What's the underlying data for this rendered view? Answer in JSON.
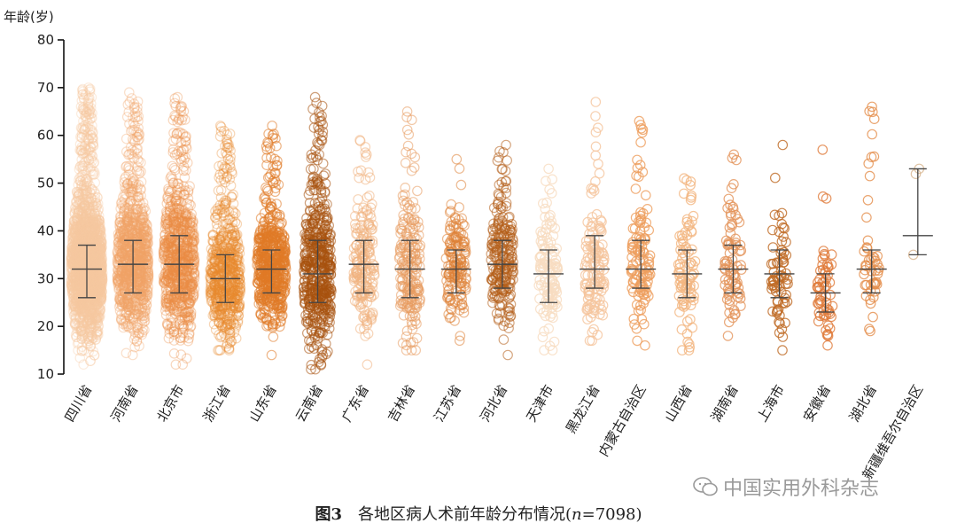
{
  "chart_data": {
    "type": "scatter",
    "ylabel": "年龄(岁)",
    "ylim": [
      10,
      80
    ],
    "yticks": [
      10,
      20,
      30,
      40,
      50,
      60,
      70,
      80
    ],
    "grid": false,
    "categories": [
      "四川省",
      "河南省",
      "北京市",
      "浙江省",
      "山东省",
      "云南省",
      "广东省",
      "吉林省",
      "江苏省",
      "河北省",
      "天津市",
      "黑龙江省",
      "内蒙古自治区",
      "山西省",
      "湖南省",
      "上海市",
      "安徽省",
      "湖北省",
      "新疆维吾尔自治区"
    ],
    "series": [
      {
        "median": 32,
        "q1": 26,
        "q3": 37,
        "min": 12,
        "max": 70,
        "count": 2200,
        "color": "#f6c8a0"
      },
      {
        "median": 33,
        "q1": 27,
        "q3": 38,
        "min": 14,
        "max": 69,
        "count": 1000,
        "color": "#f2a468"
      },
      {
        "median": 33,
        "q1": 27,
        "q3": 39,
        "min": 12,
        "max": 68,
        "count": 800,
        "color": "#ec8d45"
      },
      {
        "median": 30,
        "q1": 25,
        "q3": 35,
        "min": 15,
        "max": 62,
        "count": 650,
        "color": "#e8892e"
      },
      {
        "median": 32,
        "q1": 27,
        "q3": 36,
        "min": 14,
        "max": 62,
        "count": 550,
        "color": "#e07a26"
      },
      {
        "median": 31,
        "q1": 25,
        "q3": 38,
        "min": 11,
        "max": 68,
        "count": 500,
        "color": "#a8520f"
      },
      {
        "median": 33,
        "q1": 27,
        "q3": 38,
        "min": 12,
        "max": 59,
        "count": 200,
        "color": "#f0b27f"
      },
      {
        "median": 32,
        "q1": 26,
        "q3": 38,
        "min": 15,
        "max": 65,
        "count": 200,
        "color": "#e89b5e"
      },
      {
        "median": 32,
        "q1": 27,
        "q3": 36,
        "min": 17,
        "max": 55,
        "count": 160,
        "color": "#df8136"
      },
      {
        "median": 33,
        "q1": 28,
        "q3": 38,
        "min": 14,
        "max": 58,
        "count": 230,
        "color": "#b55e19"
      },
      {
        "median": 31,
        "q1": 25,
        "q3": 36,
        "min": 15,
        "max": 53,
        "count": 120,
        "color": "#f8dcc0"
      },
      {
        "median": 32,
        "q1": 28,
        "q3": 39,
        "min": 17,
        "max": 67,
        "count": 130,
        "color": "#f5c49c"
      },
      {
        "median": 32,
        "q1": 28,
        "q3": 38,
        "min": 16,
        "max": 63,
        "count": 110,
        "color": "#ee9e5c"
      },
      {
        "median": 31,
        "q1": 26,
        "q3": 36,
        "min": 15,
        "max": 51,
        "count": 90,
        "color": "#f2b580"
      },
      {
        "median": 32,
        "q1": 27,
        "q3": 37,
        "min": 18,
        "max": 56,
        "count": 80,
        "color": "#e4945a"
      },
      {
        "median": 31,
        "q1": 26,
        "q3": 36,
        "min": 15,
        "max": 58,
        "count": 70,
        "color": "#bf6a24"
      },
      {
        "median": 27,
        "q1": 23,
        "q3": 31,
        "min": 16,
        "max": 57,
        "count": 60,
        "color": "#e07a3a"
      },
      {
        "median": 32,
        "q1": 27,
        "q3": 36,
        "min": 19,
        "max": 66,
        "count": 50,
        "color": "#e58f4c"
      },
      {
        "median": 39,
        "q1": 35,
        "q3": 53,
        "min": 35,
        "max": 53,
        "count": 3,
        "color": "#d8b58e"
      }
    ]
  },
  "caption": {
    "figure_number": "图3",
    "text_before": "各地区病人术前年龄分布情况(",
    "n_symbol": "n",
    "text_after": "=7098)"
  },
  "watermark": {
    "text": "中国实用外科杂志"
  }
}
